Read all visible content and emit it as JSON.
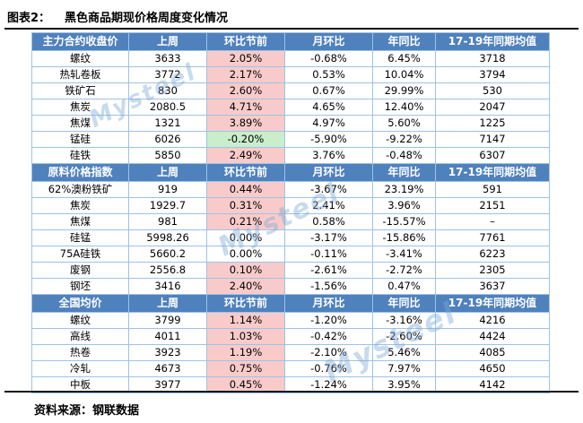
{
  "title": {
    "label": "图表2：",
    "text": "黑色商品期现价格周度变化情况"
  },
  "footer": {
    "source": "资料来源：钢联数据"
  },
  "watermark": {
    "text": "Mysteel"
  },
  "colors": {
    "header_bg": "#4f81bd",
    "header_text": "#ffffff",
    "grid_line": "#9dc3e6",
    "rise_cell_bg": "#f8cbca",
    "rise_cell_text": "#cf0a0a",
    "fall_cell_bg": "#c9eecb",
    "fall_cell_text": "#1a701b",
    "rule_line": "#111111"
  },
  "table": {
    "column_names": [
      "item-name",
      "last-week-value",
      "wow-pre-holiday-value",
      "mom-value",
      "yoy-value",
      "avg-2017-2019-value"
    ],
    "sections": [
      {
        "header": [
          "主力合约收盘价",
          "上周",
          "环比节前",
          "月环比",
          "年同比",
          "17-19年同期均值"
        ],
        "rows": [
          {
            "cells": [
              "螺纹",
              "3633",
              "2.05%",
              "-0.68%",
              "6.45%",
              "3718"
            ],
            "wow_style": "rise"
          },
          {
            "cells": [
              "热轧卷板",
              "3772",
              "2.17%",
              "0.53%",
              "10.04%",
              "3794"
            ],
            "wow_style": "rise"
          },
          {
            "cells": [
              "铁矿石",
              "830",
              "2.60%",
              "0.67%",
              "29.99%",
              "530"
            ],
            "wow_style": "rise"
          },
          {
            "cells": [
              "焦炭",
              "2080.5",
              "4.71%",
              "4.65%",
              "12.40%",
              "2047"
            ],
            "wow_style": "rise"
          },
          {
            "cells": [
              "焦煤",
              "1321",
              "3.89%",
              "4.97%",
              "5.60%",
              "1225"
            ],
            "wow_style": "rise"
          },
          {
            "cells": [
              "锰硅",
              "6026",
              "-0.20%",
              "-5.90%",
              "-9.22%",
              "7147"
            ],
            "wow_style": "fall"
          },
          {
            "cells": [
              "硅铁",
              "5850",
              "2.49%",
              "3.76%",
              "-0.48%",
              "6307"
            ],
            "wow_style": "rise"
          }
        ]
      },
      {
        "header": [
          "原料价格指数",
          "上周",
          "环比节前",
          "月环比",
          "年同比",
          "17-19年同期均值"
        ],
        "rows": [
          {
            "cells": [
              "62%澳粉铁矿",
              "919",
              "0.44%",
              "-3.67%",
              "23.19%",
              "591"
            ],
            "wow_style": "rise"
          },
          {
            "cells": [
              "焦炭",
              "1929.7",
              "0.31%",
              "2.41%",
              "3.96%",
              "2151"
            ],
            "wow_style": "rise"
          },
          {
            "cells": [
              "焦煤",
              "981",
              "0.21%",
              "0.58%",
              "-15.57%",
              "–"
            ],
            "wow_style": "rise"
          },
          {
            "cells": [
              "硅锰",
              "5998.26",
              "0.00%",
              "-3.17%",
              "-15.86%",
              "7761"
            ],
            "wow_style": "flat"
          },
          {
            "cells": [
              "75A硅铁",
              "5660.2",
              "0.00%",
              "-0.11%",
              "-3.41%",
              "6223"
            ],
            "wow_style": "flat"
          },
          {
            "cells": [
              "废钢",
              "2556.8",
              "0.10%",
              "-2.61%",
              "-2.72%",
              "2305"
            ],
            "wow_style": "rise"
          },
          {
            "cells": [
              "钢坯",
              "3416",
              "2.40%",
              "-1.56%",
              "0.47%",
              "3637"
            ],
            "wow_style": "rise"
          }
        ]
      },
      {
        "header": [
          "全国均价",
          "上周",
          "环比节前",
          "月环比",
          "年同比",
          "17-19年同期均值"
        ],
        "rows": [
          {
            "cells": [
              "螺纹",
              "3799",
              "1.14%",
              "-1.20%",
              "-3.16%",
              "4216"
            ],
            "wow_style": "rise"
          },
          {
            "cells": [
              "高线",
              "4011",
              "1.03%",
              "-0.42%",
              "-2.60%",
              "4424"
            ],
            "wow_style": "rise"
          },
          {
            "cells": [
              "热卷",
              "3923",
              "1.19%",
              "-2.10%",
              "5.46%",
              "4085"
            ],
            "wow_style": "rise"
          },
          {
            "cells": [
              "冷轧",
              "4673",
              "0.75%",
              "-0.76%",
              "7.97%",
              "4650"
            ],
            "wow_style": "rise"
          },
          {
            "cells": [
              "中板",
              "3977",
              "0.45%",
              "-1.24%",
              "3.95%",
              "4142"
            ],
            "wow_style": "rise"
          }
        ]
      }
    ]
  }
}
